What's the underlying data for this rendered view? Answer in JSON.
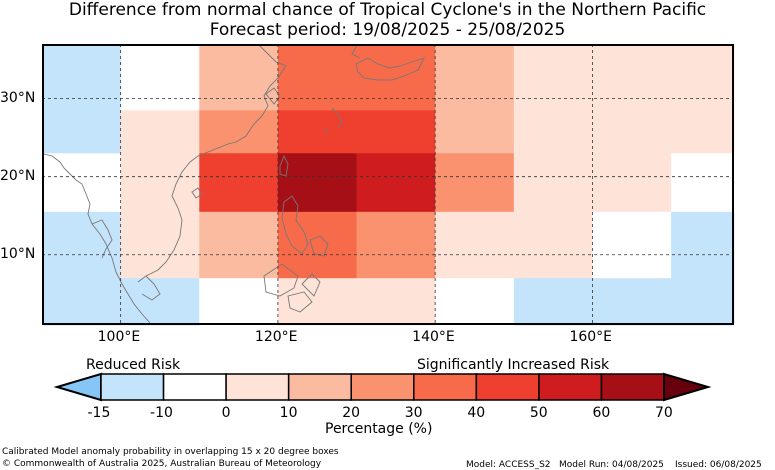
{
  "title": {
    "line1": "Difference from normal chance of Tropical Cyclone's in the Northern Pacific",
    "line2": "Forecast period: 19/08/2025 - 25/08/2025"
  },
  "map": {
    "lon_range": [
      90,
      178
    ],
    "lat_range": [
      1,
      37
    ],
    "x_ticks": [
      {
        "value": 100,
        "label": "100°E"
      },
      {
        "value": 120,
        "label": "120°E"
      },
      {
        "value": 140,
        "label": "140°E"
      },
      {
        "value": 160,
        "label": "160°E"
      }
    ],
    "y_ticks": [
      {
        "value": 30,
        "label": "30°N"
      },
      {
        "value": 20,
        "label": "20°N"
      },
      {
        "value": 10,
        "label": "10°N"
      }
    ],
    "grid": "dashed",
    "cells": [
      {
        "lon0": 90,
        "lon1": 100,
        "lat0": 28.5,
        "lat1": 37,
        "value": -15
      },
      {
        "lon0": 100,
        "lon1": 110,
        "lat0": 28.5,
        "lat1": 37,
        "value": -10
      },
      {
        "lon0": 110,
        "lon1": 120,
        "lat0": 28.5,
        "lat1": 37,
        "value": 15
      },
      {
        "lon0": 120,
        "lon1": 140,
        "lat0": 28.5,
        "lat1": 37,
        "value": 35
      },
      {
        "lon0": 140,
        "lon1": 150,
        "lat0": 28.5,
        "lat1": 37,
        "value": 15
      },
      {
        "lon0": 150,
        "lon1": 178,
        "lat0": 28.5,
        "lat1": 37,
        "value": 0
      },
      {
        "lon0": 90,
        "lon1": 100,
        "lat0": 23,
        "lat1": 28.5,
        "value": -15
      },
      {
        "lon0": 100,
        "lon1": 110,
        "lat0": 23,
        "lat1": 28.5,
        "value": 0
      },
      {
        "lon0": 110,
        "lon1": 120,
        "lat0": 23,
        "lat1": 28.5,
        "value": 25
      },
      {
        "lon0": 120,
        "lon1": 140,
        "lat0": 23,
        "lat1": 28.5,
        "value": 45
      },
      {
        "lon0": 140,
        "lon1": 150,
        "lat0": 23,
        "lat1": 28.5,
        "value": 15
      },
      {
        "lon0": 150,
        "lon1": 160,
        "lat0": 23,
        "lat1": 28.5,
        "value": 5
      },
      {
        "lon0": 160,
        "lon1": 178,
        "lat0": 23,
        "lat1": 28.5,
        "value": 0
      },
      {
        "lon0": 90,
        "lon1": 100,
        "lat0": 15.5,
        "lat1": 23,
        "value": -10
      },
      {
        "lon0": 100,
        "lon1": 110,
        "lat0": 15.5,
        "lat1": 23,
        "value": 5
      },
      {
        "lon0": 110,
        "lon1": 120,
        "lat0": 15.5,
        "lat1": 23,
        "value": 45
      },
      {
        "lon0": 120,
        "lon1": 130,
        "lat0": 15.5,
        "lat1": 23,
        "value": 65
      },
      {
        "lon0": 130,
        "lon1": 140,
        "lat0": 15.5,
        "lat1": 23,
        "value": 55
      },
      {
        "lon0": 140,
        "lon1": 150,
        "lat0": 15.5,
        "lat1": 23,
        "value": 25
      },
      {
        "lon0": 150,
        "lon1": 160,
        "lat0": 15.5,
        "lat1": 23,
        "value": 5
      },
      {
        "lon0": 160,
        "lon1": 170,
        "lat0": 15.5,
        "lat1": 23,
        "value": 0
      },
      {
        "lon0": 170,
        "lon1": 178,
        "lat0": 15.5,
        "lat1": 23,
        "value": -10
      },
      {
        "lon0": 90,
        "lon1": 100,
        "lat0": 7,
        "lat1": 15.5,
        "value": -15
      },
      {
        "lon0": 100,
        "lon1": 110,
        "lat0": 7,
        "lat1": 15.5,
        "value": 0
      },
      {
        "lon0": 110,
        "lon1": 120,
        "lat0": 7,
        "lat1": 15.5,
        "value": 15
      },
      {
        "lon0": 120,
        "lon1": 130,
        "lat0": 7,
        "lat1": 15.5,
        "value": 35
      },
      {
        "lon0": 130,
        "lon1": 140,
        "lat0": 7,
        "lat1": 15.5,
        "value": 25
      },
      {
        "lon0": 140,
        "lon1": 150,
        "lat0": 7,
        "lat1": 15.5,
        "value": 5
      },
      {
        "lon0": 150,
        "lon1": 160,
        "lat0": 7,
        "lat1": 15.5,
        "value": 0
      },
      {
        "lon0": 160,
        "lon1": 170,
        "lat0": 7,
        "lat1": 15.5,
        "value": -10
      },
      {
        "lon0": 170,
        "lon1": 178,
        "lat0": 7,
        "lat1": 15.5,
        "value": -15
      },
      {
        "lon0": 90,
        "lon1": 100,
        "lat0": 1,
        "lat1": 7,
        "value": -15
      },
      {
        "lon0": 100,
        "lon1": 110,
        "lat0": 1,
        "lat1": 7,
        "value": -15
      },
      {
        "lon0": 110,
        "lon1": 120,
        "lat0": 1,
        "lat1": 7,
        "value": -10
      },
      {
        "lon0": 120,
        "lon1": 140,
        "lat0": 1,
        "lat1": 7,
        "value": 5
      },
      {
        "lon0": 140,
        "lon1": 150,
        "lat0": 1,
        "lat1": 7,
        "value": -10
      },
      {
        "lon0": 150,
        "lon1": 178,
        "lat0": 1,
        "lat1": 7,
        "value": -15
      }
    ]
  },
  "colorbar": {
    "ticks": [
      "-15",
      "-10",
      "0",
      "10",
      "20",
      "30",
      "40",
      "50",
      "60",
      "70"
    ],
    "colors": [
      "#c4e4fc",
      "#ffffff",
      "#fde3d8",
      "#fbbba1",
      "#fb926f",
      "#f76b4b",
      "#ef3f2e",
      "#cf1d1f",
      "#a50f15"
    ],
    "under_color": "#86c6f7",
    "over_color": "#67000d",
    "label": "Percentage (%)",
    "left_label": "Reduced Risk",
    "right_label": "Significantly Increased Risk"
  },
  "footer": {
    "line1": "Calibrated Model anomaly probability in overlapping 15 x 20 degree boxes",
    "copyright": "© Commonwealth of Australia 2025, Australian Bureau of Meteorology",
    "model": "Model: ACCESS_S2",
    "model_run": "Model Run: 04/08/2025",
    "issued": "Issued: 06/08/2025"
  }
}
